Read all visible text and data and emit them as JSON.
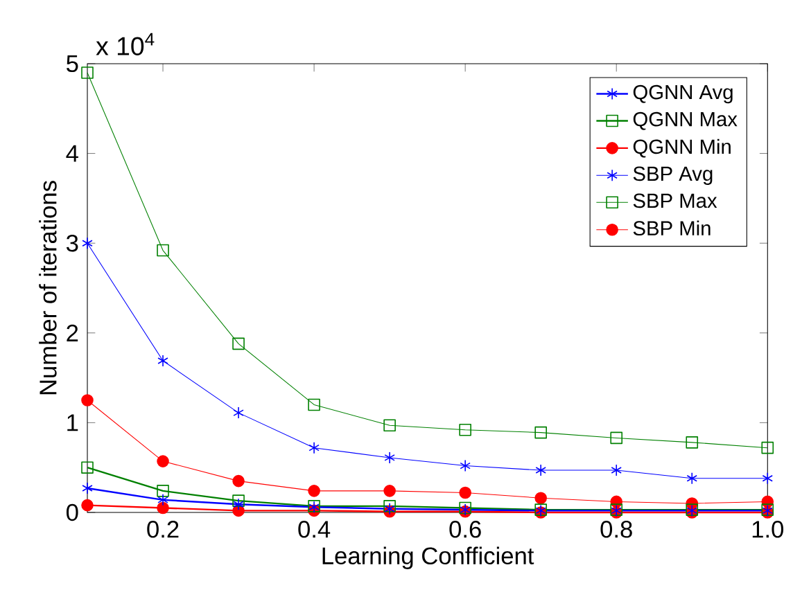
{
  "chart_data": {
    "type": "line",
    "xlabel": "Learning Confficient",
    "ylabel": "Number of iterations",
    "annotations": [
      "x 10$^{4}$"
    ],
    "x": [
      0.1,
      0.2,
      0.3,
      0.4,
      0.5,
      0.6,
      0.7,
      0.8,
      0.9,
      1.0
    ],
    "xlim": [
      0.1,
      1.0
    ],
    "xticks": [
      0.2,
      0.4,
      0.6,
      0.8,
      {
        "value": 1.0,
        "label": "1.0"
      }
    ],
    "ylim": [
      0,
      5
    ],
    "yticks": [
      0,
      1,
      2,
      3,
      4,
      5
    ],
    "grid": false,
    "legend": "top right",
    "line_style": "solid",
    "series": [
      {
        "name": "QGNN Avg",
        "color": "#0000ff",
        "marker": "cross",
        "values": [
          0.27,
          0.14,
          0.09,
          0.06,
          0.04,
          0.03,
          0.02,
          0.02,
          0.02,
          0.02
        ]
      },
      {
        "name": "QGNN Max",
        "color": "#008000",
        "marker": "square",
        "values": [
          0.5,
          0.24,
          0.13,
          0.07,
          0.07,
          0.05,
          0.03,
          0.03,
          0.03,
          0.03
        ]
      },
      {
        "name": "QGNN Min",
        "color": "#ff0000",
        "marker": "circle",
        "values": [
          0.08,
          0.05,
          0.02,
          0.02,
          0.01,
          0.01,
          0.0,
          0.0,
          0.0,
          0.0
        ]
      },
      {
        "name": "SBP Avg",
        "color": "#0000ff",
        "marker": "cross",
        "values": [
          3.0,
          1.69,
          1.11,
          0.72,
          0.61,
          0.52,
          0.47,
          0.47,
          0.38,
          0.38
        ]
      },
      {
        "name": "SBP Max",
        "color": "#008000",
        "marker": "square",
        "values": [
          4.9,
          2.92,
          1.88,
          1.2,
          0.97,
          0.92,
          0.89,
          0.83,
          0.78,
          0.72
        ]
      },
      {
        "name": "SBP Min",
        "color": "#ff0000",
        "marker": "circle",
        "values": [
          1.25,
          0.57,
          0.35,
          0.24,
          0.24,
          0.22,
          0.16,
          0.12,
          0.1,
          0.12
        ]
      }
    ]
  }
}
